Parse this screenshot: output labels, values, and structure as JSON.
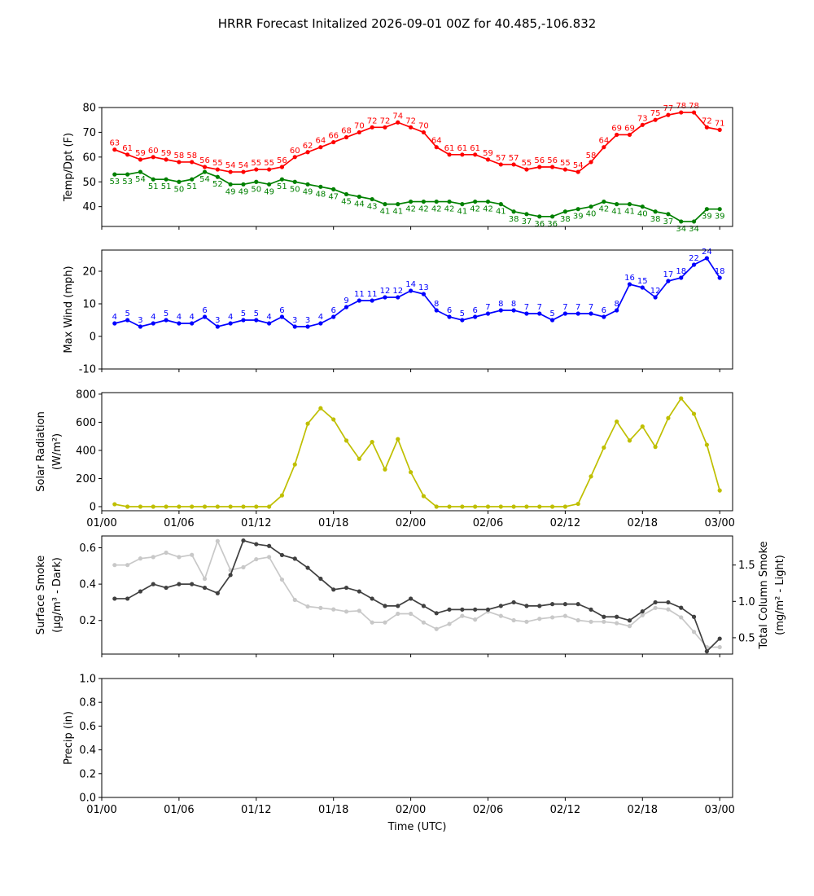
{
  "title": "HRRR Forecast Initalized 2026-09-01 00Z for 40.485,-106.832",
  "chart_data": [
    {
      "type": "line",
      "ylabel": [
        "Temp/Dpt (F)"
      ],
      "xlim": [
        0,
        49
      ],
      "xticks": [
        0,
        6,
        12,
        18,
        24,
        30,
        36,
        42,
        48
      ],
      "ylim": [
        32,
        80
      ],
      "yticks": [
        40,
        50,
        60,
        70,
        80
      ],
      "x": [
        1,
        2,
        3,
        4,
        5,
        6,
        7,
        8,
        9,
        10,
        11,
        12,
        13,
        14,
        15,
        16,
        17,
        18,
        19,
        20,
        21,
        22,
        23,
        24,
        25,
        26,
        27,
        28,
        29,
        30,
        31,
        32,
        33,
        34,
        35,
        36,
        37,
        38,
        39,
        40,
        41,
        42,
        43,
        44,
        45,
        46,
        47,
        48
      ],
      "series": [
        {
          "name": "Temp",
          "color": "#ff0000",
          "data_labels": "above",
          "values": [
            63,
            61,
            59,
            60,
            59,
            58,
            58,
            56,
            55,
            54,
            54,
            55,
            55,
            56,
            60,
            62,
            64,
            66,
            68,
            70,
            72,
            72,
            74,
            72,
            70,
            64,
            61,
            61,
            61,
            59,
            57,
            57,
            55,
            56,
            56,
            55,
            54,
            58,
            64,
            69,
            69,
            73,
            75,
            77,
            78,
            78,
            72,
            71
          ]
        },
        {
          "name": "Dpt",
          "color": "#008000",
          "data_labels": "below",
          "values": [
            53,
            53,
            54,
            51,
            51,
            50,
            51,
            54,
            52,
            49,
            49,
            50,
            49,
            51,
            50,
            49,
            48,
            47,
            45,
            44,
            43,
            41,
            41,
            42,
            42,
            42,
            42,
            41,
            42,
            42,
            41,
            38,
            37,
            36,
            36,
            38,
            39,
            40,
            42,
            41,
            41,
            40,
            38,
            37,
            34,
            34,
            39,
            39
          ]
        }
      ]
    },
    {
      "type": "line",
      "ylabel": [
        "Max Wind (mph)"
      ],
      "xlim": [
        0,
        49
      ],
      "xticks": [
        0,
        6,
        12,
        18,
        24,
        30,
        36,
        42,
        48
      ],
      "ylim": [
        -10,
        26.5
      ],
      "yticks": [
        -10,
        0,
        10,
        20
      ],
      "x": [
        1,
        2,
        3,
        4,
        5,
        6,
        7,
        8,
        9,
        10,
        11,
        12,
        13,
        14,
        15,
        16,
        17,
        18,
        19,
        20,
        21,
        22,
        23,
        24,
        25,
        26,
        27,
        28,
        29,
        30,
        31,
        32,
        33,
        34,
        35,
        36,
        37,
        38,
        39,
        40,
        41,
        42,
        43,
        44,
        45,
        46,
        47,
        48
      ],
      "series": [
        {
          "name": "Max Wind",
          "color": "#0000ff",
          "data_labels": "above",
          "values": [
            4,
            5,
            3,
            4,
            5,
            4,
            4,
            6,
            3,
            4,
            5,
            5,
            4,
            6,
            3,
            3,
            4,
            6,
            9,
            11,
            11,
            12,
            12,
            14,
            13,
            8,
            6,
            5,
            6,
            7,
            8,
            8,
            7,
            7,
            5,
            7,
            7,
            7,
            6,
            8,
            16,
            15,
            12,
            17,
            18,
            22,
            24,
            18
          ]
        }
      ]
    },
    {
      "type": "line",
      "ylabel": [
        "Solar Radiation",
        "(W/m²)"
      ],
      "xlim": [
        0,
        49
      ],
      "xticks": [
        {
          "value": 0,
          "label": "01/00"
        },
        {
          "value": 6,
          "label": "01/06"
        },
        {
          "value": 12,
          "label": "01/12"
        },
        {
          "value": 18,
          "label": "01/18"
        },
        {
          "value": 24,
          "label": "02/00"
        },
        {
          "value": 30,
          "label": "02/06"
        },
        {
          "value": 36,
          "label": "02/12"
        },
        {
          "value": 42,
          "label": "02/18"
        },
        {
          "value": 48,
          "label": "03/00"
        }
      ],
      "ylim": [
        -29,
        811
      ],
      "yticks": [
        0,
        200,
        400,
        600,
        800
      ],
      "x": [
        1,
        2,
        3,
        4,
        5,
        6,
        7,
        8,
        9,
        10,
        11,
        12,
        13,
        14,
        15,
        16,
        17,
        18,
        19,
        20,
        21,
        22,
        23,
        24,
        25,
        26,
        27,
        28,
        29,
        30,
        31,
        32,
        33,
        34,
        35,
        36,
        37,
        38,
        39,
        40,
        41,
        42,
        43,
        44,
        45,
        46,
        47,
        48
      ],
      "series": [
        {
          "name": "Solar Radiation",
          "color": "#bfbf00",
          "values": [
            17,
            0,
            0,
            0,
            0,
            0,
            0,
            0,
            0,
            0,
            0,
            0,
            0,
            80,
            300,
            590,
            700,
            620,
            470,
            340,
            460,
            265,
            480,
            245,
            75,
            0,
            0,
            0,
            0,
            0,
            0,
            0,
            0,
            0,
            0,
            0,
            20,
            215,
            420,
            605,
            470,
            570,
            425,
            630,
            770,
            660,
            440,
            115
          ]
        }
      ]
    },
    {
      "type": "line",
      "ylabel": [
        "Surface Smoke",
        "(μg/m³ - Dark)"
      ],
      "y2label": [
        "Total Column Smoke",
        "(mg/m² - Light)"
      ],
      "xlim": [
        0,
        49
      ],
      "xticks": [
        0,
        6,
        12,
        18,
        24,
        30,
        36,
        42,
        48
      ],
      "ylim": [
        0.015,
        0.665
      ],
      "yticks": [
        0.2,
        0.4,
        0.6
      ],
      "y2lim": [
        0.275,
        1.9
      ],
      "y2ticks": [
        0.5,
        {
          "value": 1.0,
          "label": "1.0"
        },
        1.5
      ],
      "x": [
        1,
        2,
        3,
        4,
        5,
        6,
        7,
        8,
        9,
        10,
        11,
        12,
        13,
        14,
        15,
        16,
        17,
        18,
        19,
        20,
        21,
        22,
        23,
        24,
        25,
        26,
        27,
        28,
        29,
        30,
        31,
        32,
        33,
        34,
        35,
        36,
        37,
        38,
        39,
        40,
        41,
        42,
        43,
        44,
        45,
        46,
        47,
        48
      ],
      "series": [
        {
          "name": "Total Column Smoke",
          "color": "#c8c8c8",
          "axis": "y2",
          "values": [
            1.5,
            1.5,
            1.59,
            1.61,
            1.67,
            1.61,
            1.64,
            1.31,
            1.83,
            1.43,
            1.47,
            1.58,
            1.61,
            1.3,
            1.02,
            0.93,
            0.91,
            0.89,
            0.86,
            0.87,
            0.71,
            0.71,
            0.83,
            0.83,
            0.71,
            0.62,
            0.69,
            0.8,
            0.75,
            0.86,
            0.8,
            0.74,
            0.72,
            0.76,
            0.78,
            0.8,
            0.74,
            0.72,
            0.72,
            0.7,
            0.66,
            0.81,
            0.91,
            0.89,
            0.78,
            0.58,
            0.37,
            0.37
          ]
        },
        {
          "name": "Surface Smoke",
          "color": "#404040",
          "values": [
            0.32,
            0.32,
            0.36,
            0.4,
            0.38,
            0.4,
            0.4,
            0.38,
            0.35,
            0.45,
            0.64,
            0.62,
            0.61,
            0.56,
            0.54,
            0.49,
            0.43,
            0.37,
            0.38,
            0.36,
            0.32,
            0.28,
            0.28,
            0.32,
            0.28,
            0.24,
            0.26,
            0.26,
            0.26,
            0.26,
            0.28,
            0.3,
            0.28,
            0.28,
            0.29,
            0.29,
            0.29,
            0.26,
            0.22,
            0.22,
            0.2,
            0.25,
            0.3,
            0.3,
            0.27,
            0.22,
            0.03,
            0.1
          ]
        }
      ]
    },
    {
      "type": "line",
      "ylabel": [
        "Precip (in)"
      ],
      "xlabel": "Time (UTC)",
      "xlim": [
        0,
        49
      ],
      "xticks": [
        {
          "value": 0,
          "label": "01/00"
        },
        {
          "value": 6,
          "label": "01/06"
        },
        {
          "value": 12,
          "label": "01/12"
        },
        {
          "value": 18,
          "label": "01/18"
        },
        {
          "value": 24,
          "label": "02/00"
        },
        {
          "value": 30,
          "label": "02/06"
        },
        {
          "value": 36,
          "label": "02/12"
        },
        {
          "value": 42,
          "label": "02/18"
        },
        {
          "value": 48,
          "label": "03/00"
        }
      ],
      "ylim": [
        0,
        1
      ],
      "yticks": [
        {
          "value": 0,
          "label": "0.0"
        },
        0.2,
        0.4,
        0.6,
        0.8,
        {
          "value": 1,
          "label": "1.0"
        }
      ],
      "series": []
    }
  ]
}
